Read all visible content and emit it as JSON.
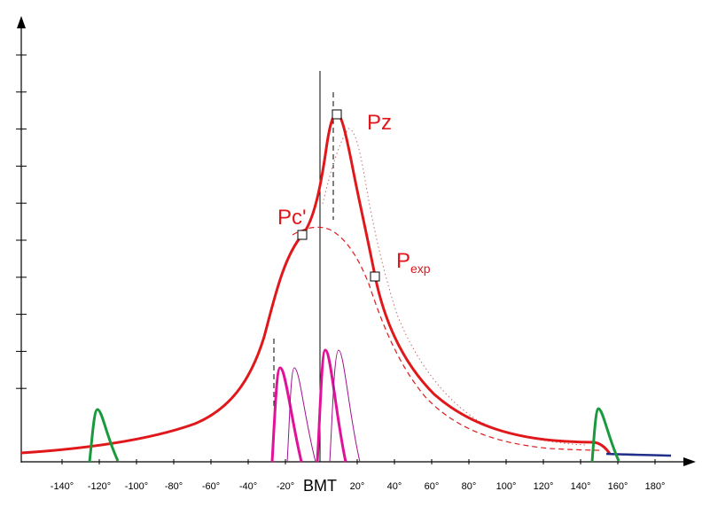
{
  "colors": {
    "pressure": "#e0181b",
    "injection": "#e0129a",
    "valve": "#1a9a3c",
    "exhaust": "#1f2f8a",
    "axis": "#000000",
    "dotted": "#c07070"
  },
  "axis": {
    "center_label": "BMT",
    "x_ticks": [
      "-140°",
      "-120°",
      "-100°",
      "-80°",
      "-60°",
      "-40°",
      "-20°",
      "20°",
      "40°",
      "60°",
      "80°",
      "100°",
      "120°",
      "140°",
      "160°",
      "180°"
    ]
  },
  "labels": {
    "pz": "Pz",
    "pc": "Pc'",
    "pexp_main": "P",
    "pexp_sub": "exp"
  }
}
